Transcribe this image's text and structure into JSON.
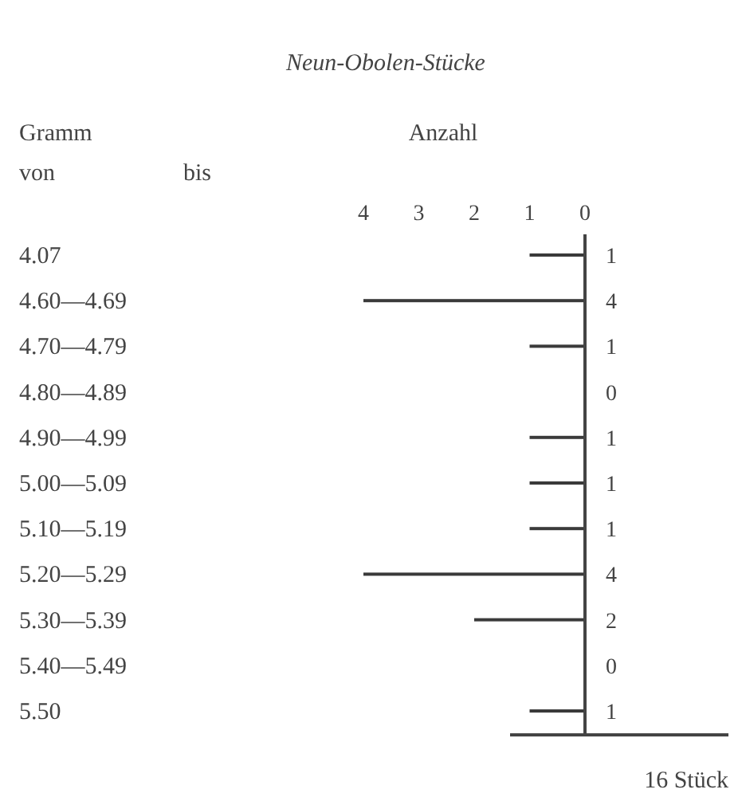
{
  "chart_data": {
    "type": "bar",
    "orientation": "horizontal",
    "title": "Neun-Obolen-Stücke",
    "xlabel": "Anzahl",
    "ylabel": "Gramm",
    "annotations": [
      "von",
      "bis",
      "16 Stück"
    ],
    "categories": [
      "4.07",
      "4.60—4.69",
      "4.70—4.79",
      "4.80—4.89",
      "4.90—4.99",
      "5.00—5.09",
      "5.10—5.19",
      "5.20—5.29",
      "5.30—5.39",
      "5.40—5.49",
      "5.50"
    ],
    "values": [
      1,
      4,
      1,
      0,
      1,
      1,
      1,
      4,
      2,
      0,
      1
    ],
    "color": "#3a3a3a",
    "x2lim": [
      4,
      0
    ],
    "x2ticks": [
      4,
      3,
      2,
      1,
      0
    ],
    "data_labels": true
  }
}
